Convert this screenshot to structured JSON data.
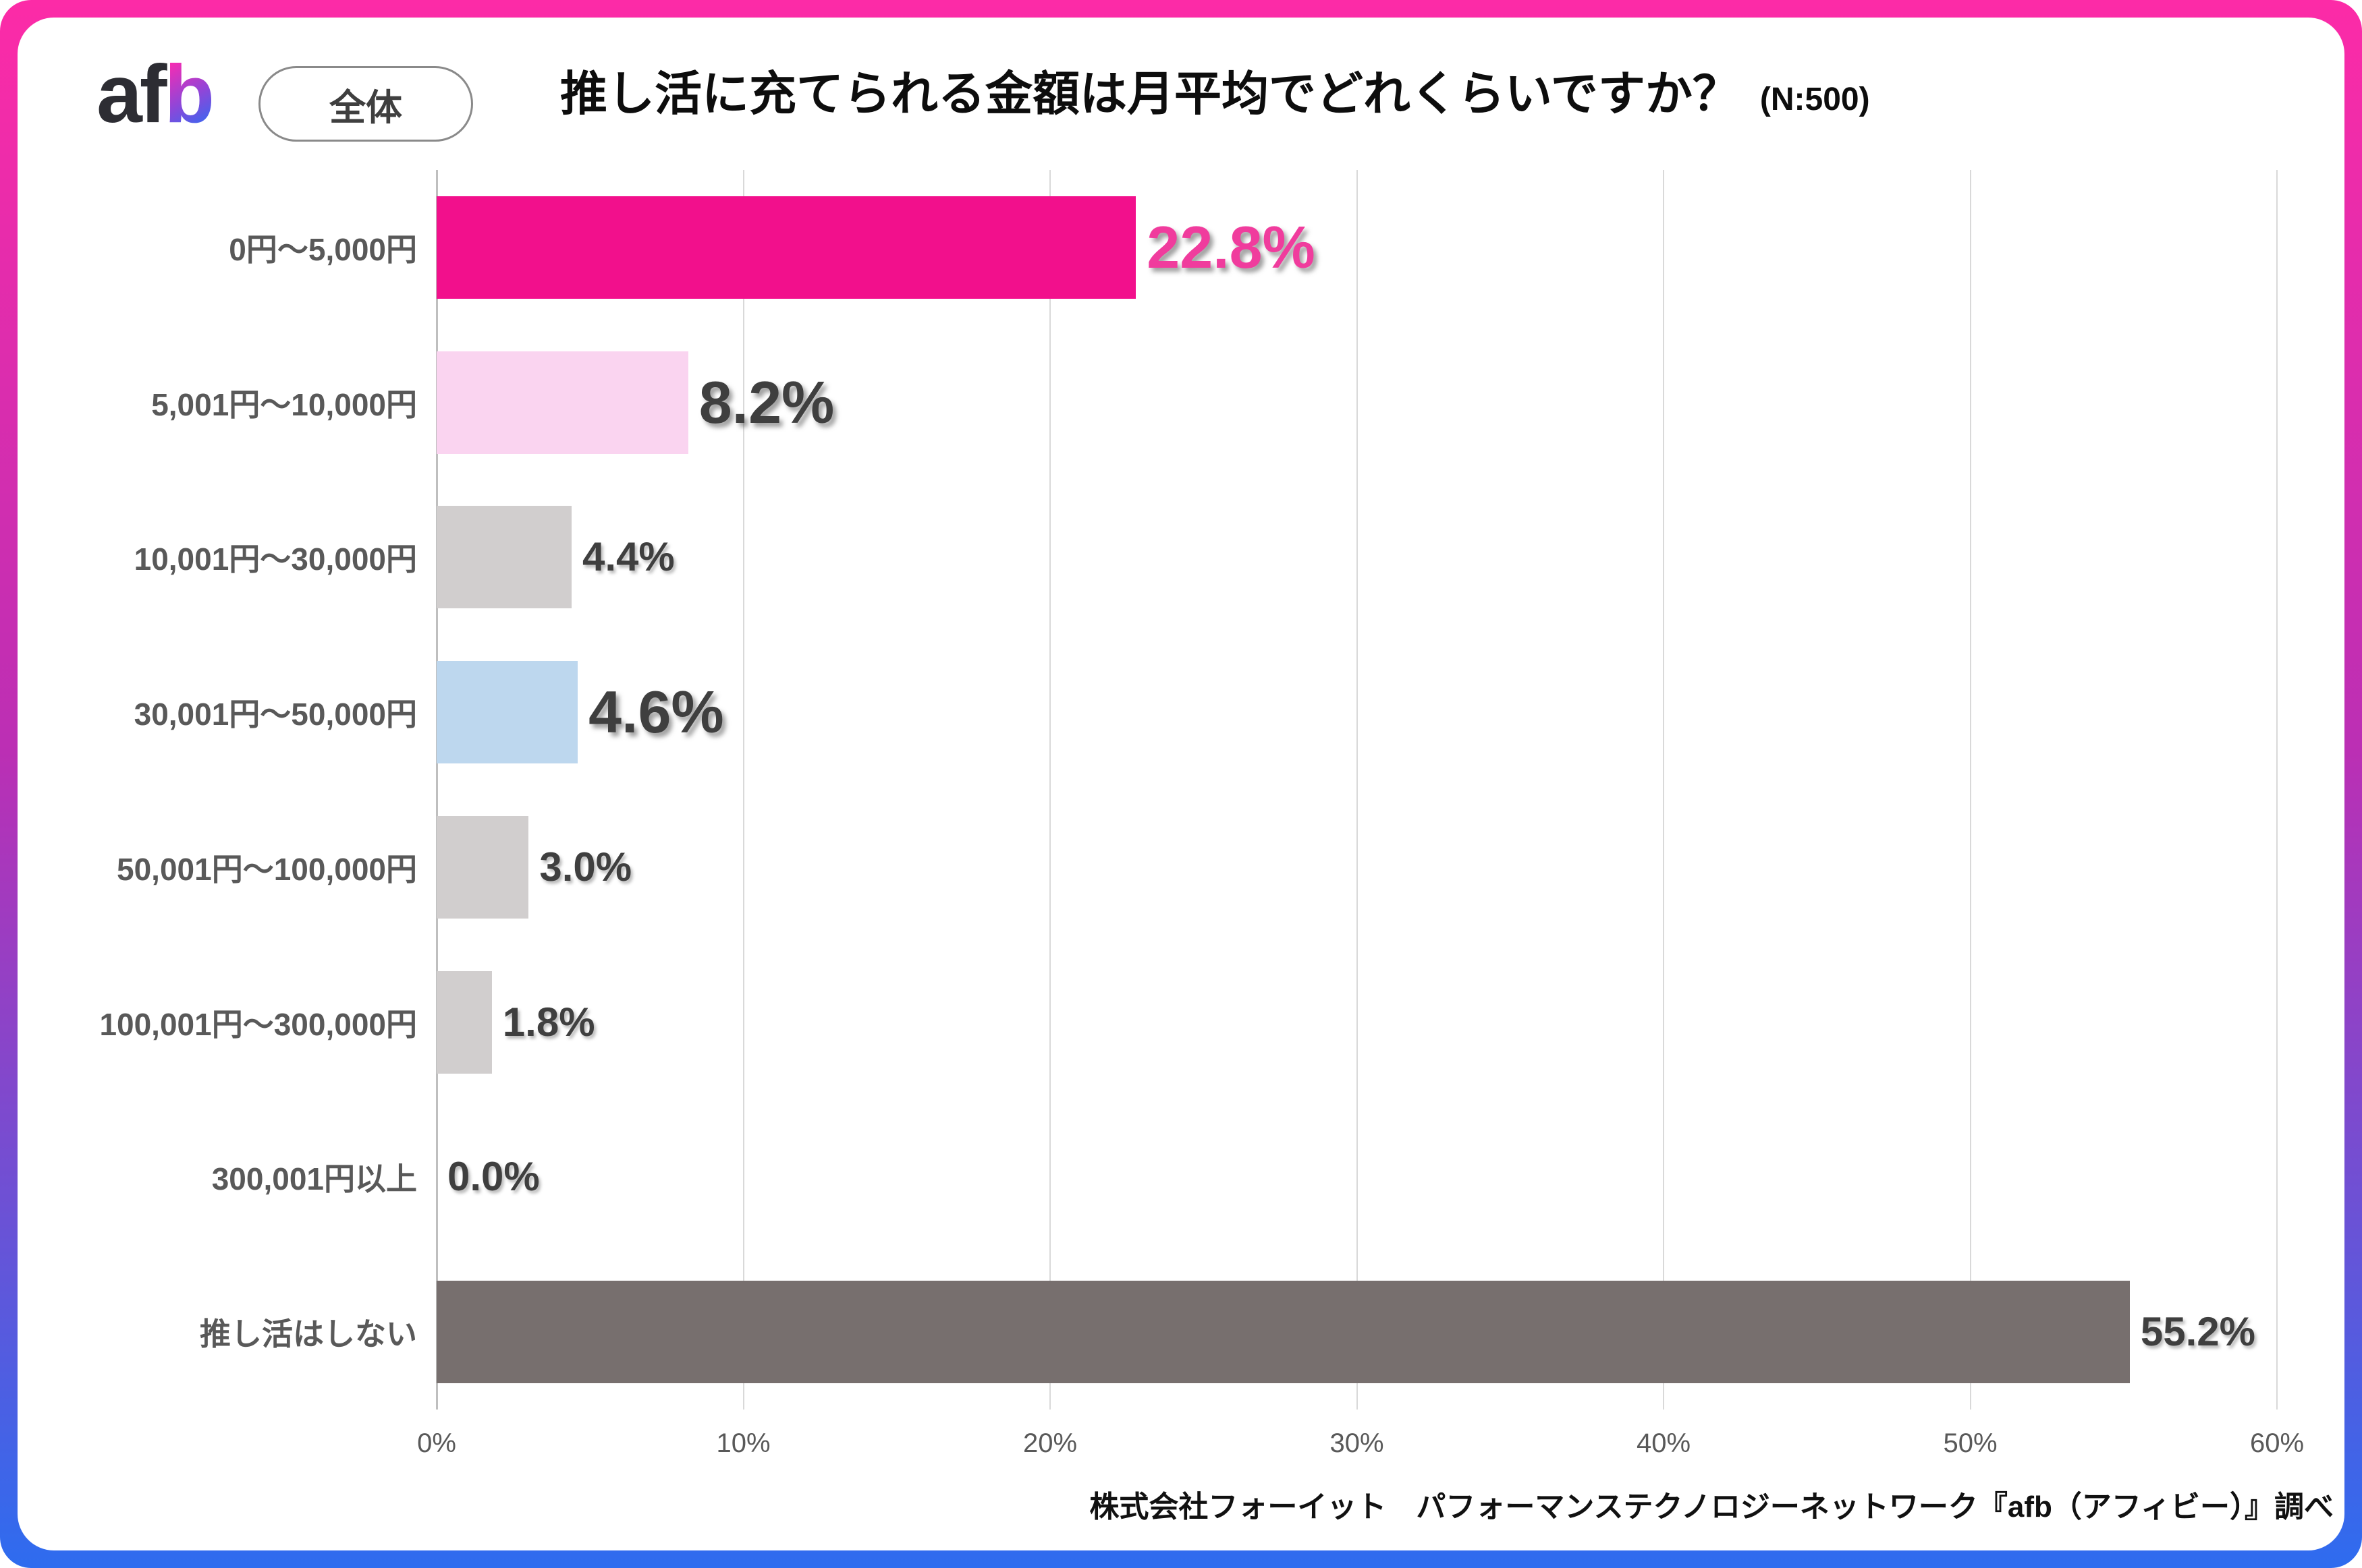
{
  "brand": {
    "logo_text_dark": "af",
    "logo_text_gradient": "b",
    "scope_label": "全体"
  },
  "header": {
    "title": "推し活に充てられる金額は月平均でどれくらいですか？",
    "sample_size": "(N:500)"
  },
  "chart_data": {
    "type": "bar",
    "orientation": "horizontal",
    "title": "推し活に充てられる金額は月平均でどれくらいですか？",
    "sample_size": "(N:500)",
    "categories": [
      "0円〜5,000円",
      "5,001円〜10,000円",
      "10,001円〜30,000円",
      "30,001円〜50,000円",
      "50,001円〜100,000円",
      "100,001円〜300,000円",
      "300,001円以上",
      "推し活はしない"
    ],
    "values": [
      22.8,
      8.2,
      4.4,
      4.6,
      3.0,
      1.8,
      0.0,
      55.2
    ],
    "value_labels": [
      "22.8%",
      "8.2%",
      "4.4%",
      "4.6%",
      "3.0%",
      "1.8%",
      "0.0%",
      "55.2%"
    ],
    "bar_colors": [
      "#F2108C",
      "#FAD4F0",
      "#D1CECE",
      "#BDD7EE",
      "#D1CECE",
      "#D1CECE",
      "#D1CECE",
      "#776F6E"
    ],
    "value_label_colors": [
      "#F03C9D",
      "#3F3F3F",
      "#3F3F3F",
      "#3F3F3F",
      "#3F3F3F",
      "#3F3F3F",
      "#3F3F3F",
      "#3F3F3F"
    ],
    "value_label_emphasis": [
      "large",
      "large",
      "small",
      "large",
      "small",
      "small",
      "small",
      "small"
    ],
    "xlim": [
      0,
      60
    ],
    "x_tick_values": [
      0,
      10,
      20,
      30,
      40,
      50,
      60
    ],
    "x_tick_labels": [
      "0%",
      "10%",
      "20%",
      "30%",
      "40%",
      "50%",
      "60%"
    ],
    "grid": true,
    "legend": null
  },
  "footer": {
    "credit": "株式会社フォーイット　パフォーマンステクノロジーネットワーク『afb（アフィビー）』調べ"
  },
  "theme": {
    "frame_gradient_top": "#FC2BA7",
    "frame_gradient_mid": "#BB2FB4",
    "frame_gradient_bottom": "#2E6CEF",
    "grid_color": "#D9D9D9",
    "axis_line_color": "#BFBFBF",
    "category_label_color": "#595959",
    "tick_label_color": "#595959",
    "accent_pink": "#F2108C"
  }
}
